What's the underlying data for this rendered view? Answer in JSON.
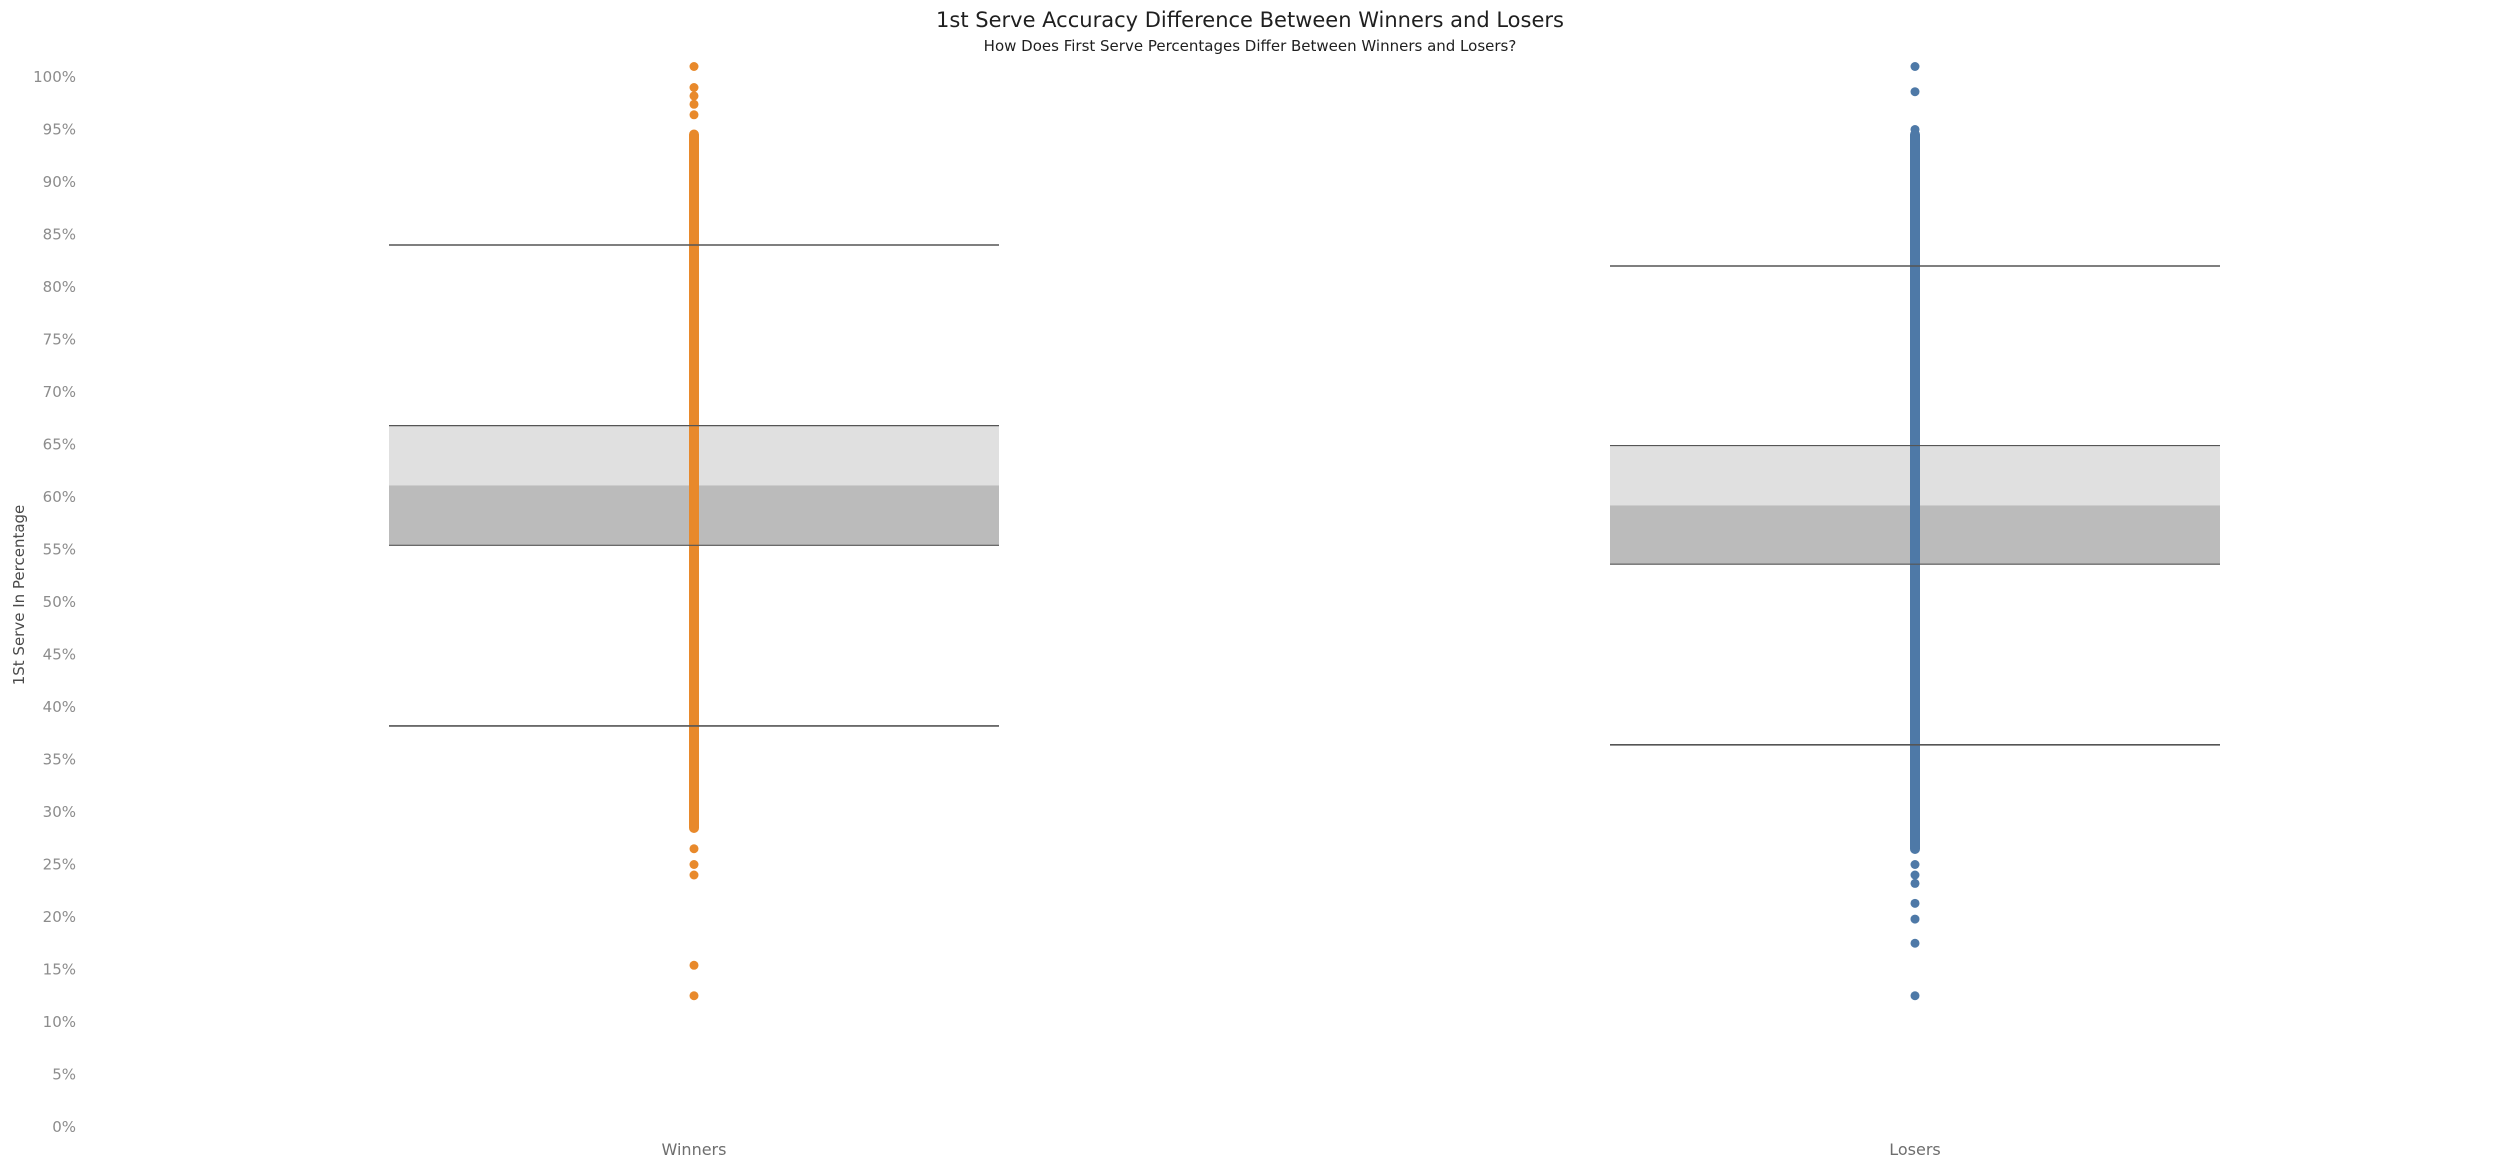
{
  "chart_data": {
    "type": "box",
    "title": "1st Serve Accuracy Difference Between Winners and Losers",
    "subtitle": "How Does First Serve Percentages Differ Between Winners and Losers?",
    "ylabel": "1St Serve In Percentage",
    "ylim": [
      0,
      100
    ],
    "yticks": [
      0,
      5,
      10,
      15,
      20,
      25,
      30,
      35,
      40,
      45,
      50,
      55,
      60,
      65,
      70,
      75,
      80,
      85,
      90,
      95,
      100
    ],
    "ytick_labels": [
      "0%",
      "5%",
      "10%",
      "15%",
      "20%",
      "25%",
      "30%",
      "35%",
      "40%",
      "45%",
      "50%",
      "55%",
      "60%",
      "65%",
      "70%",
      "75%",
      "80%",
      "85%",
      "90%",
      "95%",
      "100%"
    ],
    "categories": [
      "Winners",
      "Losers"
    ],
    "grid": false,
    "series": [
      {
        "category": "Winners",
        "color": "#E8892B",
        "whisker_low": 38.2,
        "q1": 55.4,
        "median": 61.1,
        "q3": 66.8,
        "whisker_high": 84.0,
        "dense_range": [
          28.0,
          95.0
        ],
        "points": [
          101.0,
          99.0,
          98.2,
          97.4,
          96.4,
          12.5,
          15.4,
          24.0,
          25.0,
          26.5
        ]
      },
      {
        "category": "Losers",
        "color": "#4E79A7",
        "whisker_low": 36.4,
        "q1": 53.6,
        "median": 59.2,
        "q3": 64.9,
        "whisker_high": 82.0,
        "dense_range": [
          26.0,
          95.0
        ],
        "points": [
          101.0,
          98.6,
          95.0,
          12.5,
          17.5,
          19.8,
          21.3,
          23.2,
          24.0,
          25.0
        ]
      }
    ],
    "box_colors": {
      "upper": "#E0E0E0",
      "lower": "#BBBBBB",
      "line": "#555555"
    }
  }
}
